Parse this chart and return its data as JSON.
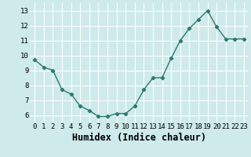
{
  "x": [
    0,
    1,
    2,
    3,
    4,
    5,
    6,
    7,
    8,
    9,
    10,
    11,
    12,
    13,
    14,
    15,
    16,
    17,
    18,
    19,
    20,
    21,
    22,
    23
  ],
  "y": [
    9.7,
    9.2,
    9.0,
    7.7,
    7.4,
    6.6,
    6.3,
    5.9,
    5.9,
    6.1,
    6.1,
    6.6,
    7.7,
    8.5,
    8.5,
    9.8,
    11.0,
    11.8,
    12.4,
    13.0,
    11.9,
    11.1,
    11.1,
    11.1
  ],
  "xlabel": "Humidex (Indice chaleur)",
  "ylim": [
    5.5,
    13.5
  ],
  "xlim": [
    -0.5,
    23.5
  ],
  "yticks": [
    6,
    7,
    8,
    9,
    10,
    11,
    12,
    13
  ],
  "xticks": [
    0,
    1,
    2,
    3,
    4,
    5,
    6,
    7,
    8,
    9,
    10,
    11,
    12,
    13,
    14,
    15,
    16,
    17,
    18,
    19,
    20,
    21,
    22,
    23
  ],
  "line_color": "#2d7a6e",
  "marker_color": "#2d7a6e",
  "bg_color": "#ceeaea",
  "grid_color": "#ffffff",
  "tick_label_fontsize": 6.5,
  "xlabel_fontsize": 8.5
}
